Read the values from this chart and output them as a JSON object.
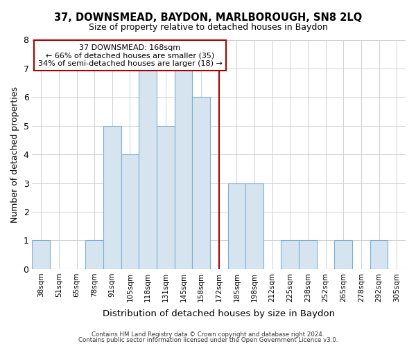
{
  "title": "37, DOWNSMEAD, BAYDON, MARLBOROUGH, SN8 2LQ",
  "subtitle": "Size of property relative to detached houses in Baydon",
  "xlabel": "Distribution of detached houses by size in Baydon",
  "ylabel": "Number of detached properties",
  "bin_labels": [
    "38sqm",
    "51sqm",
    "65sqm",
    "78sqm",
    "91sqm",
    "105sqm",
    "118sqm",
    "131sqm",
    "145sqm",
    "158sqm",
    "172sqm",
    "185sqm",
    "198sqm",
    "212sqm",
    "225sqm",
    "238sqm",
    "252sqm",
    "265sqm",
    "278sqm",
    "292sqm",
    "305sqm"
  ],
  "bar_heights": [
    1,
    0,
    0,
    1,
    5,
    4,
    7,
    5,
    7,
    6,
    0,
    3,
    3,
    0,
    1,
    1,
    0,
    1,
    0,
    1,
    0
  ],
  "bar_color": "#d6e4f0",
  "bar_edgecolor": "#7bafd4",
  "grid_color": "#d0d0d0",
  "vline_x_label": "172sqm",
  "vline_x_idx": 10,
  "vline_color": "#aa0000",
  "annotation_title": "37 DOWNSMEAD: 168sqm",
  "annotation_line1": "← 66% of detached houses are smaller (35)",
  "annotation_line2": "34% of semi-detached houses are larger (18) →",
  "annotation_box_facecolor": "#ffffff",
  "annotation_box_edgecolor": "#aa0000",
  "ylim": [
    0,
    8
  ],
  "yticks": [
    0,
    1,
    2,
    3,
    4,
    5,
    6,
    7,
    8
  ],
  "bg_color": "#ffffff",
  "footer1": "Contains HM Land Registry data © Crown copyright and database right 2024.",
  "footer2": "Contains public sector information licensed under the Open Government Licence v3.0."
}
